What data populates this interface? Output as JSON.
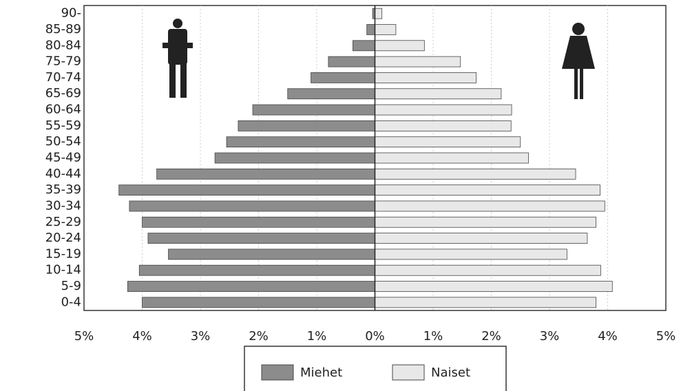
{
  "chart_data": {
    "type": "pyramid",
    "categories": [
      "0-4",
      "5-9",
      "10-14",
      "15-19",
      "20-24",
      "25-29",
      "30-34",
      "35-39",
      "40-44",
      "45-49",
      "50-54",
      "55-59",
      "60-64",
      "65-69",
      "70-74",
      "75-79",
      "80-84",
      "85-89",
      "90-"
    ],
    "series": [
      {
        "name": "Miehet",
        "color": "#8c8c8c",
        "values": [
          -4.0,
          -4.25,
          -4.05,
          -3.55,
          -3.9,
          -4.0,
          -4.22,
          -4.4,
          -3.75,
          -2.75,
          -2.55,
          -2.35,
          -2.1,
          -1.5,
          -1.1,
          -0.8,
          -0.38,
          -0.14,
          -0.04
        ]
      },
      {
        "name": "Naiset",
        "color": "#e8e8e8",
        "values": [
          3.8,
          4.08,
          3.88,
          3.3,
          3.65,
          3.8,
          3.95,
          3.87,
          3.45,
          2.64,
          2.5,
          2.34,
          2.35,
          2.17,
          1.74,
          1.47,
          0.85,
          0.36,
          0.12
        ]
      }
    ],
    "xlim": [
      -5,
      5
    ],
    "xticks": [
      {
        "value": -5,
        "label": "5%"
      },
      {
        "value": -4,
        "label": "4%"
      },
      {
        "value": -3,
        "label": "3%"
      },
      {
        "value": -2,
        "label": "2%"
      },
      {
        "value": -1,
        "label": "1%"
      },
      {
        "value": 0,
        "label": "0%"
      },
      {
        "value": 1,
        "label": "1%"
      },
      {
        "value": 2,
        "label": "2%"
      },
      {
        "value": 3,
        "label": "3%"
      },
      {
        "value": 4,
        "label": "4%"
      },
      {
        "value": 5,
        "label": "5%"
      }
    ],
    "grid": true,
    "legend": "bottom"
  }
}
